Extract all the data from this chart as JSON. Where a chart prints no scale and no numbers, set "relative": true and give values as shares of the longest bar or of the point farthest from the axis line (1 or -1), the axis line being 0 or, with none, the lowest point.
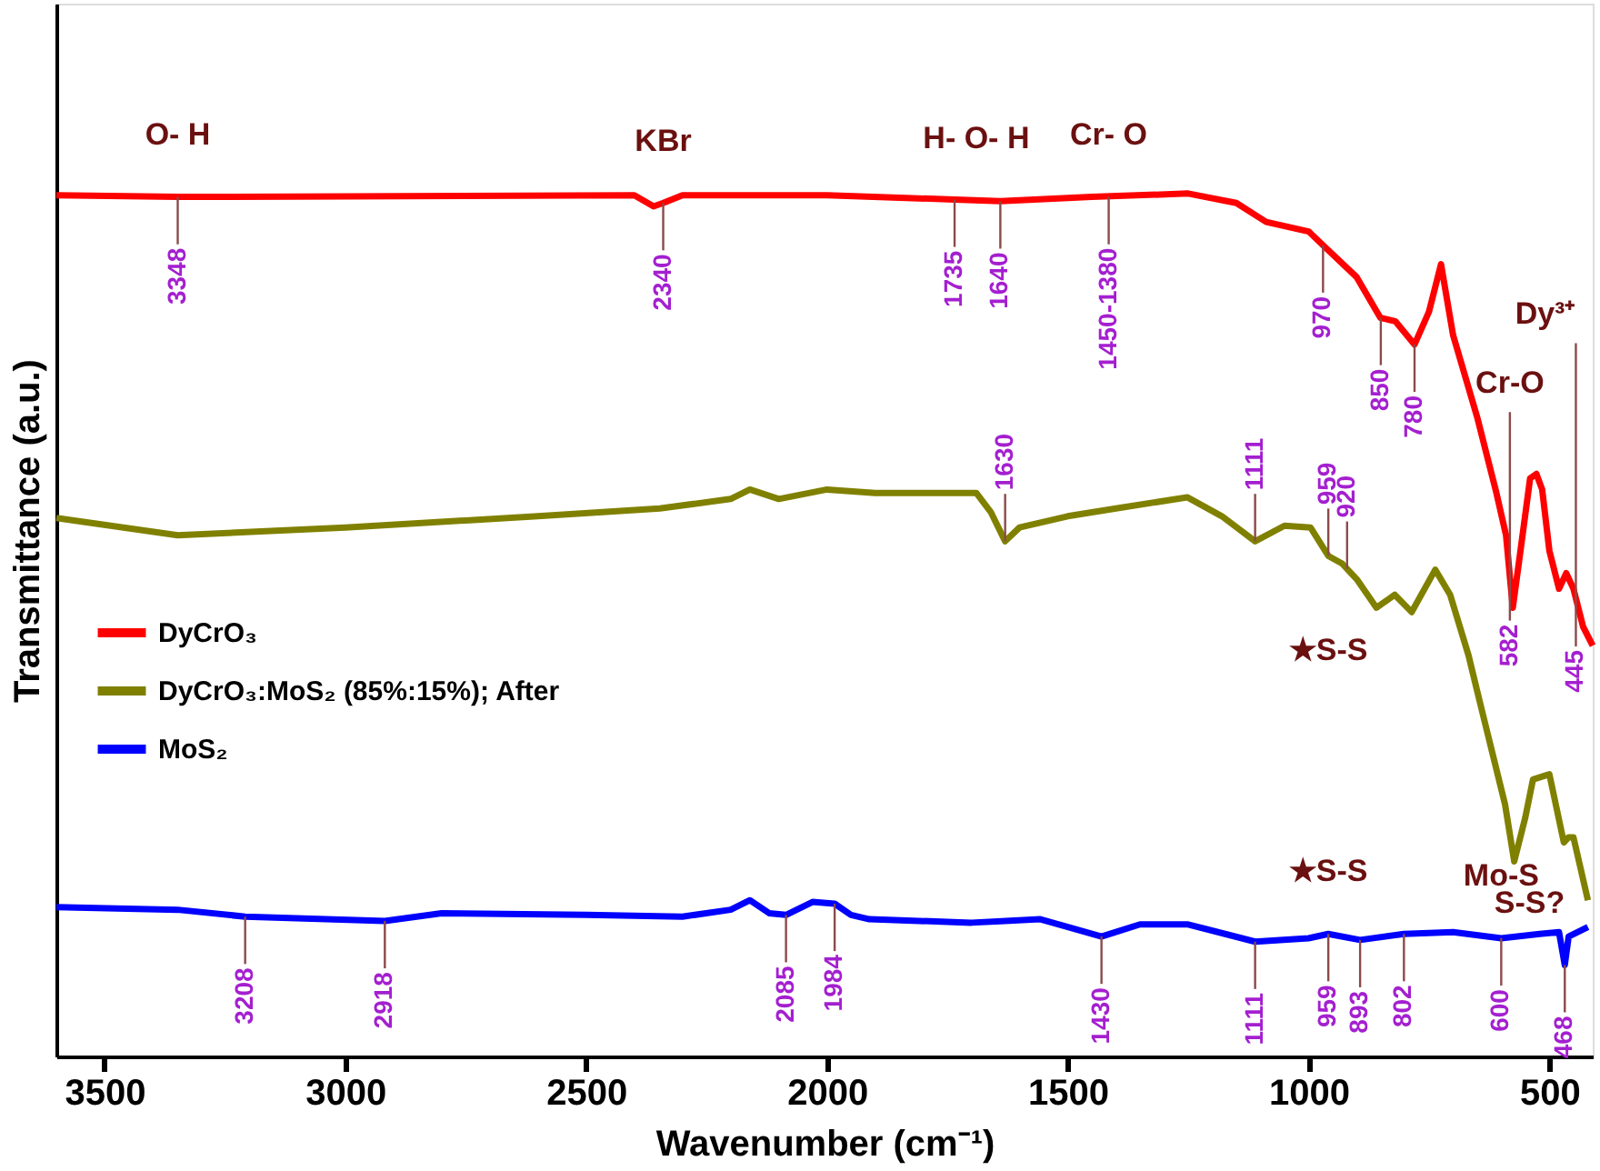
{
  "chart_data": {
    "type": "line",
    "xlabel": "Wavenumber (cm⁻¹)",
    "ylabel": "Transmittance (a.u.)",
    "relative": true,
    "xlim": [
      3600,
      410
    ],
    "xticks": [
      3500,
      3000,
      2500,
      2000,
      1500,
      1000,
      500
    ],
    "grid": false,
    "legend": "left",
    "tick_labels": "x",
    "series": [
      {
        "name": "DyCrO₃",
        "color": "#ff0000",
        "x": [
          3600,
          3348,
          2400,
          2360,
          2340,
          2300,
          2000,
          1735,
          1640,
          1450,
          1250,
          1150,
          1088,
          1000,
          970,
          900,
          851,
          820,
          780,
          750,
          725,
          700,
          650,
          610,
          590,
          576,
          560,
          540,
          527,
          515,
          500,
          480,
          465,
          450,
          430,
          410
        ],
        "values": [
          0.998,
          0.996,
          0.998,
          0.985,
          0.989,
          0.998,
          0.998,
          0.993,
          0.991,
          0.996,
          1.0,
          0.989,
          0.967,
          0.956,
          0.94,
          0.903,
          0.856,
          0.852,
          0.825,
          0.863,
          0.918,
          0.836,
          0.741,
          0.653,
          0.604,
          0.52,
          0.586,
          0.67,
          0.675,
          0.657,
          0.586,
          0.542,
          0.56,
          0.542,
          0.498,
          0.476
        ]
      },
      {
        "name": "DyCrO₃:MoS₂ (85%:15%); After",
        "color": "#808000",
        "x": [
          3600,
          3348,
          3000,
          2600,
          2347,
          2200,
          2160,
          2100,
          2000,
          1900,
          1690,
          1660,
          1630,
          1600,
          1500,
          1400,
          1252,
          1180,
          1111,
          1050,
          996,
          959,
          930,
          900,
          859,
          821,
          786,
          737,
          706,
          668,
          641,
          592,
          573,
          550,
          534,
          500,
          470,
          460,
          450,
          420
        ],
        "values": [
          0.624,
          0.604,
          0.613,
          0.626,
          0.635,
          0.646,
          0.657,
          0.646,
          0.657,
          0.653,
          0.653,
          0.631,
          0.597,
          0.613,
          0.626,
          0.635,
          0.648,
          0.626,
          0.597,
          0.615,
          0.613,
          0.58,
          0.571,
          0.553,
          0.52,
          0.535,
          0.515,
          0.564,
          0.535,
          0.465,
          0.403,
          0.292,
          0.226,
          0.277,
          0.321,
          0.327,
          0.248,
          0.254,
          0.254,
          0.181
        ]
      },
      {
        "name": "MoS₂",
        "color": "#0000ff",
        "x": [
          3600,
          3348,
          3208,
          2918,
          2800,
          2500,
          2300,
          2200,
          2160,
          2120,
          2085,
          2030,
          1984,
          1950,
          1912,
          1700,
          1557,
          1430,
          1350,
          1250,
          1111,
          1000,
          959,
          893,
          802,
          700,
          600,
          520,
          480,
          468,
          460,
          420
        ],
        "values": [
          0.173,
          0.17,
          0.162,
          0.157,
          0.166,
          0.164,
          0.162,
          0.17,
          0.181,
          0.166,
          0.164,
          0.179,
          0.177,
          0.164,
          0.159,
          0.155,
          0.159,
          0.139,
          0.153,
          0.153,
          0.133,
          0.137,
          0.142,
          0.135,
          0.142,
          0.144,
          0.137,
          0.142,
          0.144,
          0.106,
          0.139,
          0.15
        ]
      }
    ],
    "annotations": [
      {
        "text": "O- H",
        "x": 3348,
        "y": 0.996
      },
      {
        "text": "KBr",
        "x": 2340,
        "y": 0.989
      },
      {
        "text": "H- O- H",
        "x": 1690,
        "y": 0.992
      },
      {
        "text": "Cr- O",
        "x": 1415,
        "y": 0.996
      },
      {
        "text": "3348",
        "x": 3348,
        "y": 0.996
      },
      {
        "text": "2340",
        "x": 2340,
        "y": 0.989
      },
      {
        "text": "1735",
        "x": 1735,
        "y": 0.993
      },
      {
        "text": "1640",
        "x": 1640,
        "y": 0.991
      },
      {
        "text": "1450-1380",
        "x": 1415,
        "y": 0.996
      },
      {
        "text": "970",
        "x": 970,
        "y": 0.94
      },
      {
        "text": "850",
        "x": 850,
        "y": 0.856
      },
      {
        "text": "780",
        "x": 780,
        "y": 0.825
      },
      {
        "text": "Cr-O",
        "x": 582,
        "y": 0.56
      },
      {
        "text": "Dy³⁺",
        "x": 445,
        "y": 0.53
      },
      {
        "text": "582",
        "x": 582,
        "y": 0.56
      },
      {
        "text": "445",
        "x": 445,
        "y": 0.53
      },
      {
        "text": "1630",
        "x": 1630,
        "y": 0.597
      },
      {
        "text": "1111",
        "x": 1111,
        "y": 0.597
      },
      {
        "text": "959",
        "x": 959,
        "y": 0.58
      },
      {
        "text": "920",
        "x": 920,
        "y": 0.565
      },
      {
        "text": "★S-S",
        "x": 959,
        "y": 0.58
      },
      {
        "text": "3208",
        "x": 3208,
        "y": 0.162
      },
      {
        "text": "2918",
        "x": 2918,
        "y": 0.157
      },
      {
        "text": "2085",
        "x": 2085,
        "y": 0.164
      },
      {
        "text": "1984",
        "x": 1984,
        "y": 0.177
      },
      {
        "text": "1430",
        "x": 1430,
        "y": 0.139
      },
      {
        "text": "1111",
        "x": 1111,
        "y": 0.133
      },
      {
        "text": "959",
        "x": 959,
        "y": 0.142
      },
      {
        "text": "893",
        "x": 893,
        "y": 0.135
      },
      {
        "text": "802",
        "x": 802,
        "y": 0.142
      },
      {
        "text": "600",
        "x": 600,
        "y": 0.137
      },
      {
        "text": "468",
        "x": 468,
        "y": 0.106
      },
      {
        "text": "★S-S",
        "x": 959,
        "y": 0.142
      },
      {
        "text": "Mo-S",
        "x": 600,
        "y": 0.137
      },
      {
        "text": "S-S?",
        "x": 468,
        "y": 0.106
      }
    ]
  }
}
